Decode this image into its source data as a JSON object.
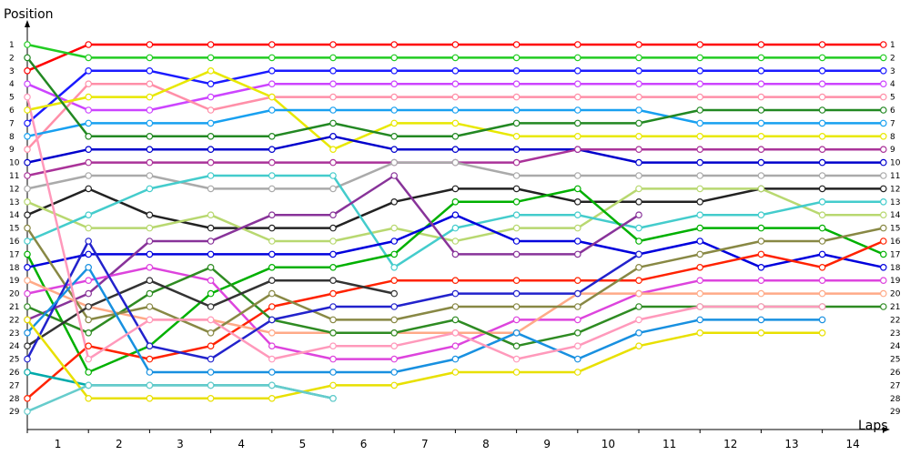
{
  "chart_data": {
    "type": "line",
    "ylabel": "Position",
    "xlabel": "Laps",
    "y_ticks": [
      "1",
      "2",
      "3",
      "4",
      "5",
      "6",
      "7",
      "8",
      "9",
      "10",
      "11",
      "12",
      "13",
      "14",
      "15",
      "16",
      "17",
      "18",
      "19",
      "20",
      "21",
      "22",
      "23",
      "24",
      "25",
      "26",
      "27",
      "28",
      "29"
    ],
    "x_ticks": [
      "1",
      "2",
      "3",
      "4",
      "5",
      "6",
      "7",
      "8",
      "9",
      "10",
      "11",
      "12",
      "13",
      "14"
    ],
    "ylim": [
      1,
      29
    ],
    "y_inverted": true,
    "grid": false,
    "series": [
      {
        "color": "#ff0000",
        "positions": [
          3,
          1,
          1,
          1,
          1,
          1,
          1,
          1,
          1,
          1,
          1,
          1,
          1,
          1,
          1
        ]
      },
      {
        "color": "#22cc22",
        "positions": [
          1,
          2,
          2,
          2,
          2,
          2,
          2,
          2,
          2,
          2,
          2,
          2,
          2,
          2,
          2
        ]
      },
      {
        "color": "#1a1aff",
        "positions": [
          7,
          3,
          3,
          4,
          3,
          3,
          3,
          3,
          3,
          3,
          3,
          3,
          3,
          3,
          3
        ]
      },
      {
        "color": "#cc44ff",
        "positions": [
          4,
          6,
          6,
          5,
          4,
          4,
          4,
          4,
          4,
          4,
          4,
          4,
          4,
          4,
          4
        ]
      },
      {
        "color": "#ff8fa8",
        "positions": [
          9,
          4,
          4,
          6,
          5,
          5,
          5,
          5,
          5,
          5,
          5,
          5,
          5,
          5,
          5
        ]
      },
      {
        "color": "#e8e800",
        "positions": [
          6,
          5,
          5,
          3,
          5,
          9,
          7,
          7,
          8,
          8,
          8,
          8,
          8,
          8,
          8
        ]
      },
      {
        "color": "#18a0f0",
        "positions": [
          8,
          7,
          7,
          7,
          6,
          6,
          6,
          6,
          6,
          6,
          6,
          7,
          7,
          7,
          7
        ]
      },
      {
        "color": "#228822",
        "positions": [
          2,
          8,
          8,
          8,
          8,
          7,
          8,
          8,
          7,
          7,
          7,
          6,
          6,
          6,
          6
        ]
      },
      {
        "color": "#0000cc",
        "positions": [
          10,
          9,
          9,
          9,
          9,
          8,
          9,
          9,
          9,
          9,
          10,
          10,
          10,
          10,
          10
        ]
      },
      {
        "color": "#aa3399",
        "positions": [
          11,
          10,
          10,
          10,
          10,
          10,
          10,
          10,
          10,
          9,
          9,
          9,
          9,
          9,
          9
        ]
      },
      {
        "color": "#aaaaaa",
        "positions": [
          12,
          11,
          11,
          12,
          12,
          12,
          10,
          10,
          11,
          11,
          11,
          11,
          11,
          11,
          11
        ]
      },
      {
        "color": "#222222",
        "positions": [
          14,
          12,
          14,
          15,
          15,
          15,
          13,
          12,
          12,
          13,
          13,
          13,
          12,
          12,
          12
        ]
      },
      {
        "color": "#b8d870",
        "positions": [
          13,
          15,
          15,
          14,
          16,
          16,
          15,
          16,
          15,
          15,
          12,
          12,
          12,
          14,
          14
        ]
      },
      {
        "color": "#44cccc",
        "positions": [
          16,
          14,
          12,
          11,
          11,
          11,
          18,
          15,
          14,
          14,
          15,
          14,
          14,
          13,
          13
        ]
      },
      {
        "color": "#00b000",
        "positions": [
          17,
          26,
          24,
          20,
          18,
          18,
          17,
          13,
          13,
          12,
          16,
          15,
          15,
          15,
          17
        ]
      },
      {
        "color": "#0000dd",
        "positions": [
          18,
          17,
          17,
          17,
          17,
          17,
          16,
          14,
          16,
          16,
          17,
          16,
          18,
          17,
          18
        ]
      },
      {
        "color": "#883399",
        "positions": [
          22,
          20,
          16,
          16,
          14,
          14,
          11,
          17,
          17,
          17,
          14
        ]
      },
      {
        "color": "#dd44dd",
        "positions": [
          20,
          19,
          18,
          19,
          24,
          25,
          25,
          24,
          22,
          22,
          20,
          19,
          19,
          19,
          19
        ]
      },
      {
        "color": "#ff2200",
        "positions": [
          28,
          24,
          25,
          24,
          21,
          20,
          19,
          19,
          19,
          19,
          19,
          18,
          17,
          18,
          16
        ]
      },
      {
        "color": "#ffaa88",
        "positions": [
          19,
          21,
          22,
          22,
          23,
          23,
          23,
          23,
          23,
          20,
          20,
          20,
          20,
          20,
          20
        ]
      },
      {
        "color": "#2e8b22",
        "positions": [
          21,
          23,
          20,
          18,
          22,
          23,
          23,
          22,
          24,
          23,
          21,
          21,
          21,
          21,
          21
        ]
      },
      {
        "color": "#888844",
        "positions": [
          15,
          22,
          21,
          23,
          20,
          22,
          22,
          21,
          21,
          21,
          18,
          17,
          16,
          16,
          15
        ]
      },
      {
        "color": "#333333",
        "positions": [
          24,
          21,
          19,
          21,
          19,
          19,
          20
        ]
      },
      {
        "color": "#2222cc",
        "positions": [
          25,
          16,
          24,
          25,
          22,
          21,
          21,
          20,
          20,
          20,
          17
        ]
      },
      {
        "color": "#00aaaa",
        "positions": [
          26,
          27,
          27,
          27,
          27,
          28
        ]
      },
      {
        "color": "#1890e0",
        "positions": [
          23,
          18,
          26,
          26,
          26,
          26,
          26,
          25,
          23,
          25,
          23,
          22,
          22,
          22
        ]
      },
      {
        "color": "#ff99bb",
        "positions": [
          5,
          25,
          22,
          22,
          25,
          24,
          24,
          23,
          25,
          24,
          22,
          21,
          21,
          21
        ]
      },
      {
        "color": "#e8e000",
        "positions": [
          22,
          28,
          28,
          28,
          28,
          27,
          27,
          26,
          26,
          26,
          24,
          23,
          23,
          23
        ]
      },
      {
        "color": "#66cccc",
        "positions": [
          29,
          27,
          27,
          27,
          27,
          28
        ]
      }
    ]
  }
}
